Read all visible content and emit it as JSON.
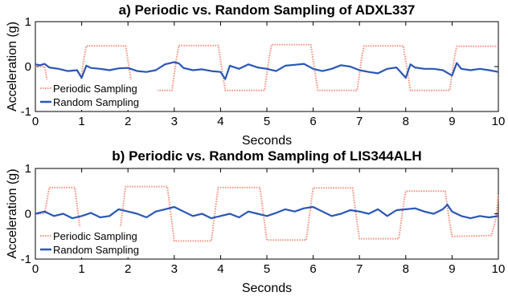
{
  "chart_data": [
    {
      "type": "line",
      "title": "a) Periodic vs. Random Sampling of ADXL337",
      "xlabel": "Seconds",
      "ylabel": "Acceleration (g)",
      "xlim": [
        0,
        10
      ],
      "ylim": [
        -1,
        1
      ],
      "xticks": [
        "0",
        "1",
        "2",
        "3",
        "4",
        "5",
        "6",
        "7",
        "8",
        "9",
        "10"
      ],
      "yticks": [
        "-1",
        "0",
        "1"
      ],
      "grid": false,
      "legend": "bottom-left",
      "series": [
        {
          "name": "Periodic Sampling",
          "color": "#f4907a",
          "style": "dotted",
          "x": [
            0,
            0.2,
            0.3,
            0.95,
            1.05,
            1.1,
            1.95,
            2.05,
            2.1,
            2.95,
            3.05,
            3.1,
            3.95,
            4.05,
            4.1,
            4.95,
            5.05,
            5.1,
            5.95,
            6.05,
            6.1,
            6.95,
            7.05,
            7.1,
            7.95,
            8.05,
            8.1,
            8.95,
            9.05,
            9.1,
            10
          ],
          "y": [
            0,
            0,
            -0.55,
            -0.55,
            0.2,
            0.46,
            0.46,
            -0.2,
            -0.53,
            -0.53,
            0.2,
            0.47,
            0.47,
            -0.2,
            -0.53,
            -0.53,
            0.2,
            0.49,
            0.49,
            -0.2,
            -0.53,
            -0.53,
            0.2,
            0.46,
            0.46,
            -0.2,
            -0.53,
            -0.53,
            0.2,
            0.45,
            0.45
          ]
        },
        {
          "name": "Random Sampling",
          "color": "#2a57b5",
          "style": "solid",
          "x": [
            0,
            0.1,
            0.2,
            0.3,
            0.5,
            0.7,
            0.9,
            1.0,
            1.1,
            1.2,
            1.4,
            1.6,
            1.8,
            2.0,
            2.2,
            2.4,
            2.6,
            2.8,
            3.0,
            3.1,
            3.2,
            3.4,
            3.6,
            3.8,
            4.0,
            4.1,
            4.2,
            4.4,
            4.6,
            4.8,
            5.0,
            5.2,
            5.4,
            5.6,
            5.8,
            6.0,
            6.2,
            6.4,
            6.6,
            6.8,
            7.0,
            7.2,
            7.4,
            7.6,
            7.8,
            8.0,
            8.1,
            8.2,
            8.4,
            8.6,
            8.8,
            9.0,
            9.1,
            9.2,
            9.4,
            9.6,
            9.8,
            10.0
          ],
          "y": [
            0.05,
            0.03,
            0.06,
            -0.02,
            -0.05,
            -0.1,
            -0.08,
            -0.25,
            0.02,
            -0.03,
            -0.05,
            -0.08,
            -0.04,
            -0.03,
            -0.1,
            -0.12,
            -0.08,
            0.05,
            0.1,
            0.07,
            -0.03,
            -0.08,
            -0.06,
            -0.1,
            -0.12,
            -0.28,
            0.02,
            -0.05,
            0.05,
            -0.02,
            -0.05,
            -0.1,
            0.02,
            0.04,
            0.06,
            -0.05,
            -0.1,
            -0.05,
            0.03,
            0.0,
            -0.08,
            -0.12,
            -0.15,
            -0.05,
            -0.02,
            -0.25,
            0.05,
            -0.02,
            -0.05,
            -0.05,
            -0.08,
            -0.2,
            0.08,
            -0.05,
            -0.08,
            -0.05,
            -0.08,
            -0.12
          ]
        }
      ]
    },
    {
      "type": "line",
      "title": "b) Periodic vs. Random Sampling of LIS344ALH",
      "xlabel": "Seconds",
      "ylabel": "Acceleration (g)",
      "xlim": [
        0,
        10
      ],
      "ylim": [
        -1,
        1
      ],
      "xticks": [
        "0",
        "1",
        "2",
        "3",
        "4",
        "5",
        "6",
        "7",
        "8",
        "9",
        "10"
      ],
      "yticks": [
        "-1",
        "0",
        "1"
      ],
      "grid": false,
      "legend": "bottom-left",
      "series": [
        {
          "name": "Periodic Sampling",
          "color": "#f4907a",
          "style": "dotted",
          "x": [
            0,
            0.2,
            0.3,
            0.85,
            0.95,
            1.0,
            1.8,
            1.9,
            1.95,
            2.85,
            2.95,
            3.0,
            3.8,
            3.9,
            3.95,
            4.85,
            4.95,
            5.0,
            5.85,
            5.95,
            6.0,
            6.85,
            6.95,
            7.0,
            7.85,
            7.95,
            8.0,
            8.85,
            8.95,
            9.0,
            9.85,
            9.95,
            10
          ],
          "y": [
            0,
            0,
            0.58,
            0.58,
            -0.2,
            -0.58,
            -0.58,
            0.2,
            0.6,
            0.6,
            -0.2,
            -0.6,
            -0.6,
            0.2,
            0.58,
            0.58,
            -0.2,
            -0.58,
            -0.58,
            0.2,
            0.57,
            0.57,
            -0.2,
            -0.55,
            -0.55,
            0.2,
            0.5,
            0.5,
            -0.2,
            -0.5,
            -0.48,
            -0.1,
            0.43
          ]
        },
        {
          "name": "Random Sampling",
          "color": "#2a57b5",
          "style": "solid",
          "x": [
            0,
            0.2,
            0.4,
            0.6,
            0.8,
            1.0,
            1.2,
            1.4,
            1.6,
            1.8,
            2.0,
            2.2,
            2.4,
            2.6,
            2.8,
            3.0,
            3.2,
            3.4,
            3.6,
            3.8,
            4.0,
            4.2,
            4.4,
            4.6,
            4.8,
            5.0,
            5.2,
            5.4,
            5.6,
            5.8,
            6.0,
            6.2,
            6.4,
            6.6,
            6.8,
            7.0,
            7.2,
            7.4,
            7.6,
            7.8,
            8.0,
            8.2,
            8.4,
            8.6,
            8.8,
            8.9,
            9.0,
            9.2,
            9.4,
            9.6,
            9.8,
            10.0
          ],
          "y": [
            0,
            0.05,
            -0.05,
            0.0,
            -0.1,
            -0.05,
            0.02,
            -0.08,
            -0.05,
            0.1,
            0.05,
            0.0,
            -0.08,
            0.05,
            0.1,
            0.15,
            0.05,
            -0.05,
            0.0,
            -0.1,
            -0.05,
            0.0,
            -0.08,
            0.05,
            0.0,
            -0.05,
            0.02,
            0.1,
            0.05,
            0.12,
            0.15,
            0.05,
            -0.05,
            0.0,
            0.08,
            0.05,
            0.0,
            0.1,
            -0.05,
            0.08,
            0.1,
            0.12,
            0.05,
            0.0,
            0.1,
            0.2,
            0.05,
            -0.05,
            -0.1,
            -0.05,
            -0.08,
            -0.05
          ]
        }
      ]
    }
  ]
}
